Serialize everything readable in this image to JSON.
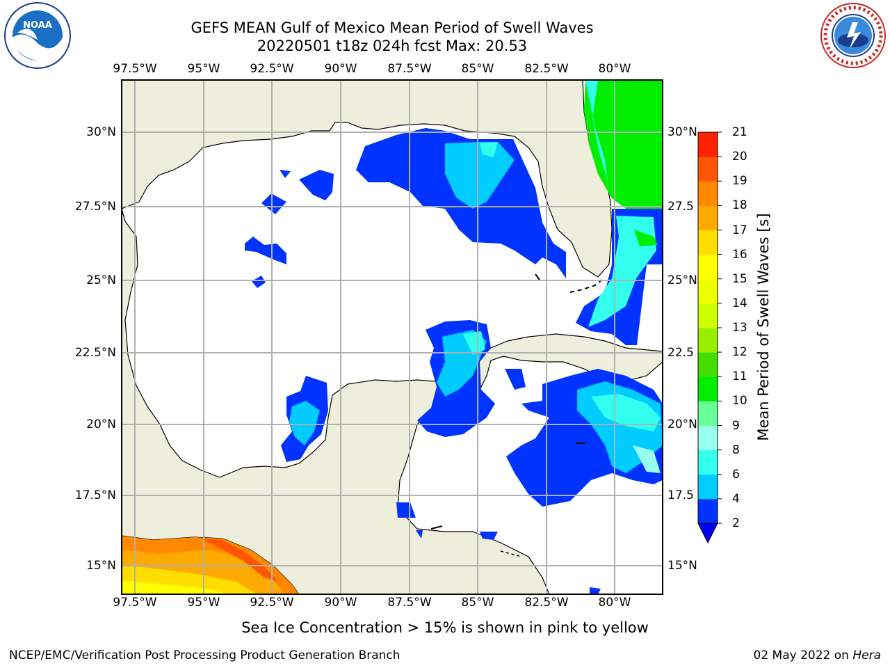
{
  "title_line1": "GEFS MEAN Gulf of Mexico Mean Period of Swell Waves",
  "title_line2": "20220501 t18z 024h fcst   Max: 20.53",
  "lon_labels": [
    "97.5°W",
    "95°W",
    "92.5°W",
    "90°W",
    "87.5°W",
    "85°W",
    "82.5°W",
    "80°W"
  ],
  "lat_labels": [
    "30°N",
    "27.5°N",
    "25°N",
    "22.5°N",
    "20°N",
    "17.5°N",
    "15°N"
  ],
  "lat_labels_right": [
    "30°N",
    "27.5",
    "25°N",
    "22.5",
    "20°N",
    "17.5",
    "15°N"
  ],
  "colorbar": {
    "title": "Mean Period of Swell Waves [s]",
    "ticks": [
      "2",
      "4",
      "6",
      "8",
      "9",
      "10",
      "11",
      "12",
      "13",
      "14",
      "15",
      "16",
      "17",
      "18",
      "19",
      "20",
      "21"
    ],
    "colors": [
      "#0033ff",
      "#00ccff",
      "#33ffee",
      "#99ffee",
      "#66ff99",
      "#00ee00",
      "#44dd00",
      "#99ee00",
      "#ccff00",
      "#eeff00",
      "#ffff00",
      "#ffdd00",
      "#ffaa00",
      "#ff8800",
      "#ff5500",
      "#ff2200"
    ],
    "under_color": "#0000ee"
  },
  "note": "Sea Ice Concentration > 15% is shown in pink to yellow",
  "footer_left": "NCEP/EMC/Verification Post Processing Product Generation Branch",
  "footer_right_prefix": "02 May 2022 on ",
  "footer_right_host": "Hera",
  "colors": {
    "land": "#eeeedd",
    "grid": "#b0b0b0",
    "ocean": "#ffffff"
  },
  "logos": {
    "left": "noaa-logo",
    "right": "nws-logo"
  }
}
